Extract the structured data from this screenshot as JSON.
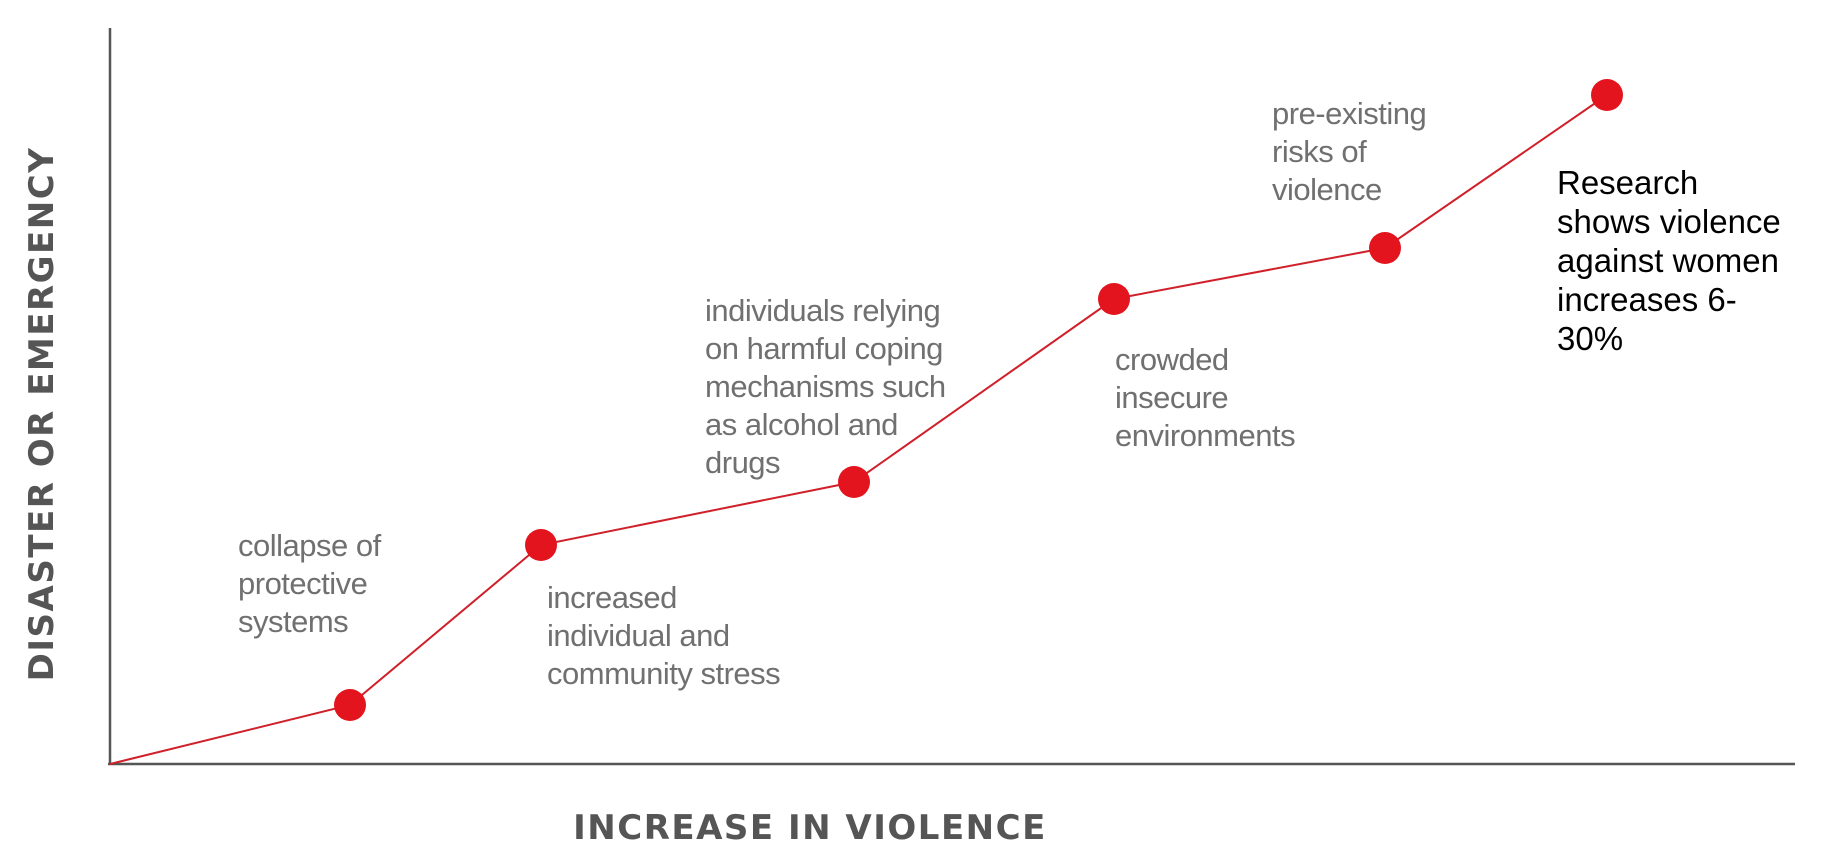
{
  "diagram": {
    "x_axis_title": "INCREASE IN VIOLENCE",
    "y_axis_title": "DISASTER OR EMERGENCY",
    "colors": {
      "line": "#d0202a",
      "dot": "#e3141d",
      "axis": "#555555",
      "label": "#707070"
    },
    "milestones": [
      {
        "id": "collapse",
        "lines": [
          "collapse of",
          "protective",
          "systems"
        ]
      },
      {
        "id": "stress",
        "lines": [
          "increased",
          "individual and",
          "community stress"
        ]
      },
      {
        "id": "coping",
        "lines": [
          "individuals relying",
          "on harmful coping",
          "mechanisms such",
          "as alcohol and",
          "drugs"
        ]
      },
      {
        "id": "crowded",
        "lines": [
          "crowded",
          "insecure",
          "environments"
        ]
      },
      {
        "id": "preexisting",
        "lines": [
          "pre-existing",
          "risks of",
          "violence"
        ]
      },
      {
        "id": "peak",
        "lines": []
      }
    ],
    "callout": {
      "lines": [
        "Research",
        "shows violence",
        "against women",
        "increases 6-",
        "30%"
      ]
    }
  }
}
